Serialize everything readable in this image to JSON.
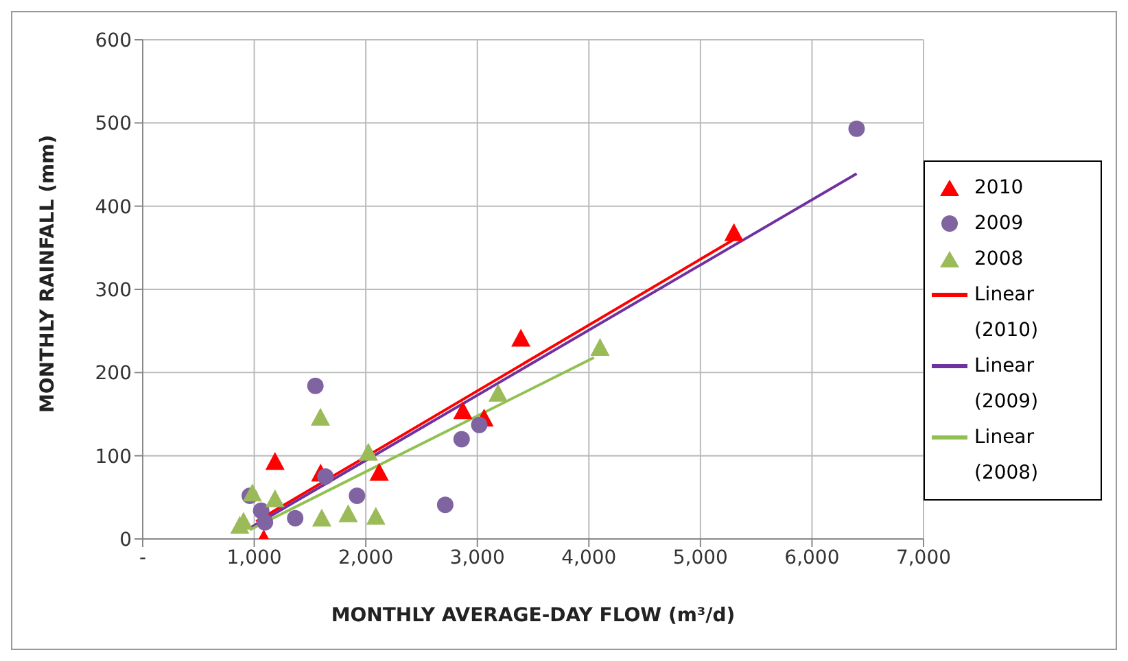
{
  "chart_data": {
    "type": "scatter",
    "xlabel": "MONTHLY AVERAGE-DAY FLOW (m³/d)",
    "ylabel": "MONTHLY RAINFALL (mm)",
    "xlim": [
      0,
      7000
    ],
    "xticks": [
      {
        "value": 0,
        "label": "-"
      },
      {
        "value": 1000,
        "label": "1,000"
      },
      {
        "value": 2000,
        "label": "2,000"
      },
      {
        "value": 3000,
        "label": "3,000"
      },
      {
        "value": 4000,
        "label": "4,000"
      },
      {
        "value": 5000,
        "label": "5,000"
      },
      {
        "value": 6000,
        "label": "6,000"
      },
      {
        "value": 7000,
        "label": "7,000"
      }
    ],
    "ylim": [
      0,
      600
    ],
    "yticks": [
      0,
      100,
      200,
      300,
      400,
      500,
      600
    ],
    "grid": true,
    "legend": "right",
    "series": [
      {
        "name": "2010",
        "marker": "triangle",
        "color": "#ff0000",
        "x": [
          1085,
          1186,
          1595,
          2120,
          2870,
          3060,
          3390,
          5300
        ],
        "values": [
          0,
          93,
          79,
          80,
          154,
          145,
          241,
          368
        ]
      },
      {
        "name": "2009",
        "marker": "circle",
        "color": "#8064a2",
        "x": [
          960,
          1062,
          1096,
          1367,
          1548,
          1638,
          1921,
          2712,
          2859,
          3017,
          6400
        ],
        "values": [
          52,
          34,
          20,
          25,
          184,
          75,
          52,
          41,
          120,
          137,
          493
        ]
      },
      {
        "name": "2008",
        "marker": "triangle",
        "color": "#9bbb59",
        "x": [
          870,
          904,
          983,
          1186,
          1593,
          1605,
          1842,
          2023,
          2090,
          3186,
          4100
        ],
        "values": [
          16,
          21,
          55,
          48,
          146,
          25,
          30,
          104,
          27,
          175,
          230
        ]
      },
      {
        "name": "Linear (2010)",
        "type": "line",
        "marker": "none",
        "color": "#ff0000",
        "x": [
          1017,
          5300
        ],
        "values": [
          21,
          360
        ]
      },
      {
        "name": "Linear (2009)",
        "type": "line",
        "marker": "none",
        "color": "#7030a0",
        "x": [
          960,
          6400
        ],
        "values": [
          13,
          439
        ]
      },
      {
        "name": "Linear (2008)",
        "type": "line",
        "marker": "none",
        "color": "#92c050",
        "x": [
          960,
          4045
        ],
        "values": [
          11,
          218
        ]
      }
    ]
  }
}
